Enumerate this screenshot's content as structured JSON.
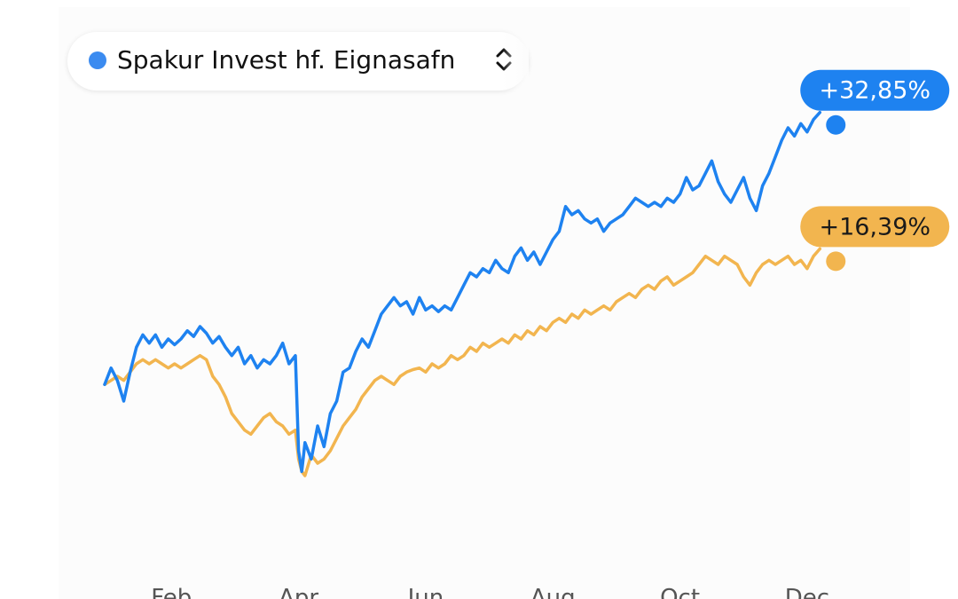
{
  "fund_selector": {
    "name": "Spakur Invest hf. Eignasafn",
    "dot_color": "#3b8bf0",
    "icon": "chevron-up-down-icon"
  },
  "chart_data": {
    "type": "line",
    "title": "",
    "xlabel": "",
    "ylabel": "",
    "x_ticks": [
      "Feb",
      "Apr",
      "Jun",
      "Aug",
      "Oct",
      "Dec"
    ],
    "x_tick_positions": [
      1.05,
      3.05,
      5.05,
      7.05,
      9.05,
      11.05
    ],
    "xlim": [
      0,
      12
    ],
    "ylim": [
      -20,
      40
    ],
    "grid": false,
    "legend": "none",
    "series": [
      {
        "color": "#1e82f0",
        "end_label": "+32,85%",
        "points": [
          [
            0.0,
            0.0
          ],
          [
            0.1,
            2.0
          ],
          [
            0.2,
            0.5
          ],
          [
            0.3,
            -2.0
          ],
          [
            0.4,
            1.5
          ],
          [
            0.5,
            4.5
          ],
          [
            0.6,
            6.0
          ],
          [
            0.7,
            5.0
          ],
          [
            0.8,
            6.0
          ],
          [
            0.9,
            4.5
          ],
          [
            1.0,
            5.5
          ],
          [
            1.1,
            4.8
          ],
          [
            1.2,
            5.5
          ],
          [
            1.3,
            6.5
          ],
          [
            1.4,
            5.8
          ],
          [
            1.5,
            7.0
          ],
          [
            1.6,
            6.2
          ],
          [
            1.7,
            5.0
          ],
          [
            1.8,
            5.8
          ],
          [
            1.9,
            4.5
          ],
          [
            2.0,
            3.5
          ],
          [
            2.1,
            4.5
          ],
          [
            2.2,
            2.5
          ],
          [
            2.3,
            3.5
          ],
          [
            2.4,
            2.0
          ],
          [
            2.5,
            3.0
          ],
          [
            2.6,
            2.5
          ],
          [
            2.7,
            3.5
          ],
          [
            2.8,
            5.0
          ],
          [
            2.9,
            2.5
          ],
          [
            3.0,
            3.5
          ],
          [
            3.05,
            -8.0
          ],
          [
            3.1,
            -10.5
          ],
          [
            3.15,
            -7.0
          ],
          [
            3.25,
            -9.0
          ],
          [
            3.35,
            -5.0
          ],
          [
            3.45,
            -7.5
          ],
          [
            3.55,
            -3.5
          ],
          [
            3.65,
            -2.0
          ],
          [
            3.75,
            1.5
          ],
          [
            3.85,
            2.0
          ],
          [
            3.95,
            4.0
          ],
          [
            4.05,
            5.5
          ],
          [
            4.15,
            4.5
          ],
          [
            4.25,
            6.5
          ],
          [
            4.35,
            8.5
          ],
          [
            4.45,
            9.5
          ],
          [
            4.55,
            10.5
          ],
          [
            4.65,
            9.5
          ],
          [
            4.75,
            10.0
          ],
          [
            4.85,
            8.5
          ],
          [
            4.95,
            10.5
          ],
          [
            5.05,
            9.0
          ],
          [
            5.15,
            9.5
          ],
          [
            5.25,
            8.8
          ],
          [
            5.35,
            9.5
          ],
          [
            5.45,
            9.0
          ],
          [
            5.55,
            10.5
          ],
          [
            5.65,
            12.0
          ],
          [
            5.75,
            13.5
          ],
          [
            5.85,
            13.0
          ],
          [
            5.95,
            14.0
          ],
          [
            6.05,
            13.5
          ],
          [
            6.15,
            15.0
          ],
          [
            6.25,
            14.0
          ],
          [
            6.35,
            13.5
          ],
          [
            6.45,
            15.5
          ],
          [
            6.55,
            16.5
          ],
          [
            6.65,
            15.0
          ],
          [
            6.75,
            16.0
          ],
          [
            6.85,
            14.5
          ],
          [
            6.95,
            16.0
          ],
          [
            7.05,
            17.5
          ],
          [
            7.15,
            18.5
          ],
          [
            7.25,
            21.5
          ],
          [
            7.35,
            20.5
          ],
          [
            7.45,
            21.0
          ],
          [
            7.55,
            20.0
          ],
          [
            7.65,
            19.5
          ],
          [
            7.75,
            20.0
          ],
          [
            7.85,
            18.5
          ],
          [
            7.95,
            19.5
          ],
          [
            8.05,
            20.0
          ],
          [
            8.15,
            20.5
          ],
          [
            8.25,
            21.5
          ],
          [
            8.35,
            22.5
          ],
          [
            8.45,
            22.0
          ],
          [
            8.55,
            21.5
          ],
          [
            8.65,
            22.0
          ],
          [
            8.75,
            21.5
          ],
          [
            8.85,
            22.5
          ],
          [
            8.95,
            22.0
          ],
          [
            9.05,
            23.0
          ],
          [
            9.15,
            25.0
          ],
          [
            9.25,
            23.5
          ],
          [
            9.35,
            24.0
          ],
          [
            9.45,
            25.5
          ],
          [
            9.55,
            27.0
          ],
          [
            9.65,
            24.5
          ],
          [
            9.75,
            23.0
          ],
          [
            9.85,
            22.0
          ],
          [
            9.95,
            23.5
          ],
          [
            10.05,
            25.0
          ],
          [
            10.15,
            22.5
          ],
          [
            10.25,
            21.0
          ],
          [
            10.35,
            24.0
          ],
          [
            10.45,
            25.5
          ],
          [
            10.55,
            27.5
          ],
          [
            10.65,
            29.5
          ],
          [
            10.75,
            31.0
          ],
          [
            10.85,
            30.0
          ],
          [
            10.95,
            31.5
          ],
          [
            11.05,
            30.5
          ],
          [
            11.15,
            32.0
          ],
          [
            11.25,
            32.85
          ]
        ]
      },
      {
        "color": "#f2b54f",
        "end_label": "+16,39%",
        "points": [
          [
            0.0,
            0.0
          ],
          [
            0.1,
            0.5
          ],
          [
            0.2,
            1.0
          ],
          [
            0.3,
            0.5
          ],
          [
            0.4,
            1.5
          ],
          [
            0.5,
            2.5
          ],
          [
            0.6,
            3.0
          ],
          [
            0.7,
            2.5
          ],
          [
            0.8,
            3.0
          ],
          [
            0.9,
            2.5
          ],
          [
            1.0,
            2.0
          ],
          [
            1.1,
            2.5
          ],
          [
            1.2,
            2.0
          ],
          [
            1.3,
            2.5
          ],
          [
            1.4,
            3.0
          ],
          [
            1.5,
            3.5
          ],
          [
            1.6,
            3.0
          ],
          [
            1.7,
            1.0
          ],
          [
            1.8,
            0.0
          ],
          [
            1.9,
            -1.5
          ],
          [
            2.0,
            -3.5
          ],
          [
            2.1,
            -4.5
          ],
          [
            2.2,
            -5.5
          ],
          [
            2.3,
            -6.0
          ],
          [
            2.4,
            -5.0
          ],
          [
            2.5,
            -4.0
          ],
          [
            2.6,
            -3.5
          ],
          [
            2.7,
            -4.5
          ],
          [
            2.8,
            -5.0
          ],
          [
            2.9,
            -6.0
          ],
          [
            3.0,
            -5.5
          ],
          [
            3.05,
            -9.0
          ],
          [
            3.1,
            -10.5
          ],
          [
            3.15,
            -11.0
          ],
          [
            3.25,
            -8.5
          ],
          [
            3.35,
            -9.5
          ],
          [
            3.45,
            -9.0
          ],
          [
            3.55,
            -8.0
          ],
          [
            3.65,
            -6.5
          ],
          [
            3.75,
            -5.0
          ],
          [
            3.85,
            -4.0
          ],
          [
            3.95,
            -3.0
          ],
          [
            4.05,
            -1.5
          ],
          [
            4.15,
            -0.5
          ],
          [
            4.25,
            0.5
          ],
          [
            4.35,
            1.0
          ],
          [
            4.45,
            0.5
          ],
          [
            4.55,
            0.0
          ],
          [
            4.65,
            1.0
          ],
          [
            4.75,
            1.5
          ],
          [
            4.85,
            1.8
          ],
          [
            4.95,
            2.0
          ],
          [
            5.05,
            1.5
          ],
          [
            5.15,
            2.5
          ],
          [
            5.25,
            2.0
          ],
          [
            5.35,
            2.5
          ],
          [
            5.45,
            3.5
          ],
          [
            5.55,
            3.0
          ],
          [
            5.65,
            3.5
          ],
          [
            5.75,
            4.5
          ],
          [
            5.85,
            4.0
          ],
          [
            5.95,
            5.0
          ],
          [
            6.05,
            4.5
          ],
          [
            6.15,
            5.0
          ],
          [
            6.25,
            5.5
          ],
          [
            6.35,
            5.0
          ],
          [
            6.45,
            6.0
          ],
          [
            6.55,
            5.5
          ],
          [
            6.65,
            6.5
          ],
          [
            6.75,
            6.0
          ],
          [
            6.85,
            7.0
          ],
          [
            6.95,
            6.5
          ],
          [
            7.05,
            7.5
          ],
          [
            7.15,
            8.0
          ],
          [
            7.25,
            7.5
          ],
          [
            7.35,
            8.5
          ],
          [
            7.45,
            8.0
          ],
          [
            7.55,
            9.0
          ],
          [
            7.65,
            8.5
          ],
          [
            7.75,
            9.0
          ],
          [
            7.85,
            9.5
          ],
          [
            7.95,
            9.0
          ],
          [
            8.05,
            10.0
          ],
          [
            8.15,
            10.5
          ],
          [
            8.25,
            11.0
          ],
          [
            8.35,
            10.5
          ],
          [
            8.45,
            11.5
          ],
          [
            8.55,
            12.0
          ],
          [
            8.65,
            11.5
          ],
          [
            8.75,
            12.5
          ],
          [
            8.85,
            13.0
          ],
          [
            8.95,
            12.0
          ],
          [
            9.05,
            12.5
          ],
          [
            9.15,
            13.0
          ],
          [
            9.25,
            13.5
          ],
          [
            9.35,
            14.5
          ],
          [
            9.45,
            15.5
          ],
          [
            9.55,
            15.0
          ],
          [
            9.65,
            14.5
          ],
          [
            9.75,
            15.5
          ],
          [
            9.85,
            15.0
          ],
          [
            9.95,
            14.5
          ],
          [
            10.05,
            13.0
          ],
          [
            10.15,
            12.0
          ],
          [
            10.25,
            13.5
          ],
          [
            10.35,
            14.5
          ],
          [
            10.45,
            15.0
          ],
          [
            10.55,
            14.5
          ],
          [
            10.65,
            15.0
          ],
          [
            10.75,
            15.5
          ],
          [
            10.85,
            14.5
          ],
          [
            10.95,
            15.0
          ],
          [
            11.05,
            14.0
          ],
          [
            11.15,
            15.5
          ],
          [
            11.25,
            16.39
          ]
        ]
      }
    ]
  }
}
